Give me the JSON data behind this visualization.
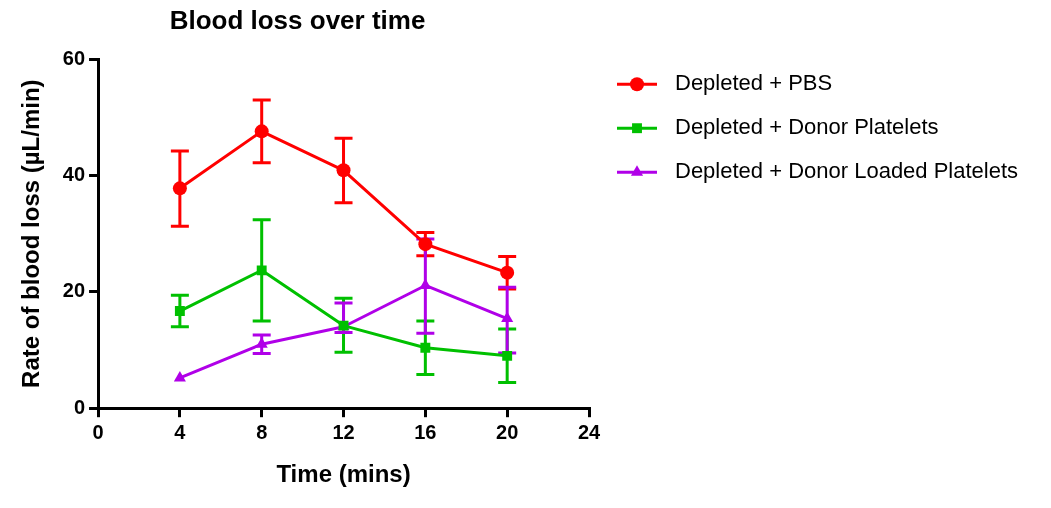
{
  "chart_data": {
    "type": "line",
    "title": "Blood loss over time",
    "xlabel": "Time (mins)",
    "ylabel": "Rate of blood loss (µL/min)",
    "x": [
      4,
      8,
      12,
      16,
      20
    ],
    "xlim": [
      0,
      24
    ],
    "xticks": [
      0,
      4,
      8,
      12,
      16,
      20,
      24
    ],
    "ylim": [
      0,
      60
    ],
    "yticks": [
      0,
      20,
      40,
      60
    ],
    "grid": false,
    "legend": "right",
    "line_style": "solid",
    "series": [
      {
        "name": "Depleted + PBS",
        "color": "#ff0000",
        "marker": "circle",
        "values": [
          37.8,
          47.6,
          40.9,
          28.2,
          23.3
        ],
        "errors": [
          [
            31.3,
            44.2
          ],
          [
            42.2,
            53.0
          ],
          [
            35.3,
            46.4
          ],
          [
            26.2,
            30.2
          ],
          [
            20.5,
            26.1
          ]
        ]
      },
      {
        "name": "Depleted + Donor Platelets",
        "color": "#00c000",
        "marker": "square",
        "values": [
          16.7,
          23.7,
          14.2,
          10.4,
          9.0
        ],
        "errors": [
          [
            14.0,
            19.4
          ],
          [
            15.0,
            32.4
          ],
          [
            9.6,
            18.9
          ],
          [
            5.8,
            15.0
          ],
          [
            4.4,
            13.6
          ]
        ]
      },
      {
        "name": "Depleted + Donor Loaded Platelets",
        "color": "#b000e8",
        "marker": "triangle",
        "values": [
          5.2,
          11.0,
          14.0,
          21.1,
          15.4
        ],
        "errors": [
          null,
          [
            9.4,
            12.6
          ],
          [
            13.0,
            18.1
          ],
          [
            12.9,
            29.1
          ],
          [
            9.5,
            20.8
          ]
        ]
      }
    ]
  }
}
